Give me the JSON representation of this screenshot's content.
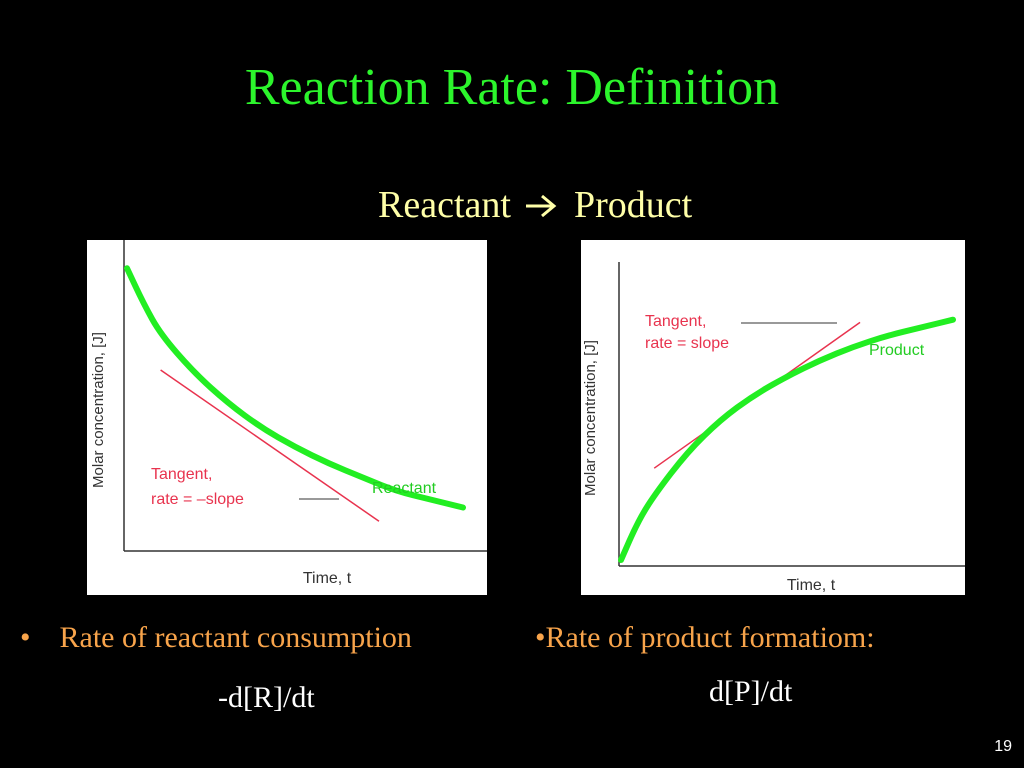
{
  "slide": {
    "title": "Reaction Rate: Definition",
    "subtitle_left": "Reactant",
    "subtitle_arrow_icon": "right-arrow-icon",
    "subtitle_right": "Product",
    "page_number": "19"
  },
  "colors": {
    "background": "#000000",
    "title": "#2CF52C",
    "subtitle": "#FFFFA8",
    "bullet_text": "#F8A44B",
    "formula_text": "#FFFFFF",
    "curve": "#22EE22",
    "tangent": "#E8334E"
  },
  "bullets": {
    "left_marker": "•",
    "left_text": "Rate of reactant consumption",
    "left_formula": "-d[R]/dt",
    "right_text": "•Rate of product formatiom:",
    "right_formula": "d[P]/dt"
  },
  "chart_data": [
    {
      "type": "line",
      "ylabel": "Molar concentration, [J]",
      "xlabel": "Time, t",
      "xlim": [
        0,
        1
      ],
      "ylim": [
        0,
        1
      ],
      "grid": false,
      "series": [
        {
          "name": "Reactant",
          "x": [
            0.0,
            0.05,
            0.1,
            0.2,
            0.3,
            0.4,
            0.5,
            0.6,
            0.7,
            0.8,
            0.9,
            1.0
          ],
          "y": [
            0.97,
            0.84,
            0.73,
            0.59,
            0.48,
            0.39,
            0.32,
            0.26,
            0.21,
            0.16,
            0.13,
            0.1
          ]
        }
      ],
      "tangent": {
        "label": "Tangent,\nrate = –slope",
        "x": [
          0.1,
          0.75
        ],
        "y": [
          0.6,
          0.05
        ]
      }
    },
    {
      "type": "line",
      "ylabel": "Molar concentration, [J]",
      "xlabel": "Time, t",
      "xlim": [
        0,
        1
      ],
      "ylim": [
        0,
        1
      ],
      "grid": false,
      "series": [
        {
          "name": "Product",
          "x": [
            0.0,
            0.05,
            0.1,
            0.2,
            0.3,
            0.4,
            0.5,
            0.6,
            0.7,
            0.8,
            0.9,
            1.0
          ],
          "y": [
            0.0,
            0.14,
            0.24,
            0.4,
            0.52,
            0.61,
            0.68,
            0.74,
            0.79,
            0.83,
            0.86,
            0.89
          ]
        }
      ],
      "tangent": {
        "label": "Tangent,\nrate = slope",
        "x": [
          0.1,
          0.72
        ],
        "y": [
          0.34,
          0.88
        ]
      }
    }
  ]
}
